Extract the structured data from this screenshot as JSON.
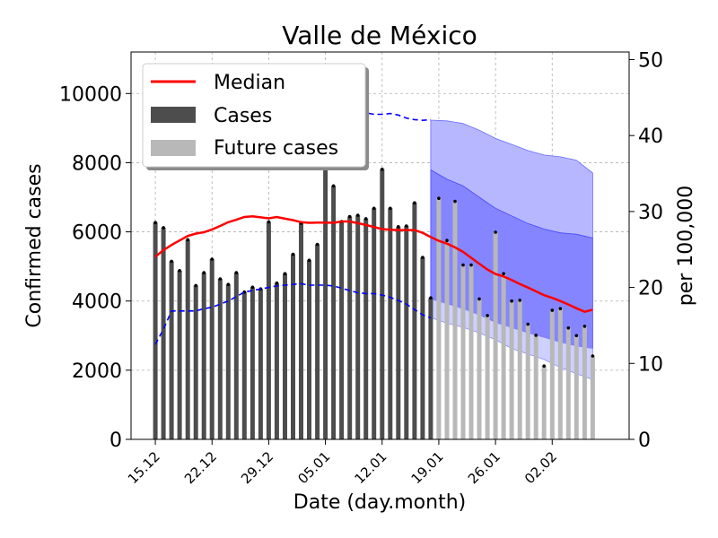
{
  "chart_data": {
    "type": "bar",
    "title": "Valle de México",
    "xlabel": "Date (day.month)",
    "ylabel": "Confirmed cases",
    "y2label": "per 100,000",
    "ylim": [
      0,
      11200
    ],
    "y2lim": [
      0,
      51
    ],
    "yticks": [
      0,
      2000,
      4000,
      6000,
      8000,
      10000
    ],
    "y2ticks": [
      0,
      10,
      20,
      30,
      40,
      50
    ],
    "xticks": [
      {
        "day": 0,
        "label": "15.12"
      },
      {
        "day": 7,
        "label": "22.12"
      },
      {
        "day": 14,
        "label": "29.12"
      },
      {
        "day": 21,
        "label": "05.01"
      },
      {
        "day": 28,
        "label": "12.01"
      },
      {
        "day": 35,
        "label": "19.01"
      },
      {
        "day": 42,
        "label": "26.01"
      },
      {
        "day": 49,
        "label": "02.02"
      }
    ],
    "xlim": [
      -3,
      58.5
    ],
    "grid": true,
    "legend_position": "top-left",
    "legend": [
      {
        "key": "median",
        "label": "Median"
      },
      {
        "key": "cases",
        "label": "Cases"
      },
      {
        "key": "future",
        "label": "Future cases"
      }
    ],
    "colors": {
      "cases": "#4d4d4d",
      "future": "#b8b8b8",
      "median": "#ff0000",
      "mean_incidence": "#0000ff",
      "band_outer": "#b7b7ff",
      "band_inner": "#8585ff",
      "band_low": "#ced0ff",
      "grid": "#b0b0b0"
    },
    "past_cases": {
      "start_day": 0,
      "values": [
        6270,
        6120,
        5150,
        4880,
        5770,
        4450,
        4820,
        5210,
        4640,
        4480,
        4820,
        4260,
        4400,
        4350,
        6290,
        4520,
        4790,
        5350,
        6250,
        5180,
        5640,
        7950,
        7330,
        6300,
        6440,
        6480,
        6380,
        6680,
        7810,
        6680,
        6150,
        6170,
        6840,
        5260,
        4090
      ]
    },
    "future_cases": {
      "start_day": 35,
      "values": [
        6970,
        5750,
        6880,
        5040,
        5040,
        4060,
        3580,
        5990,
        4790,
        4000,
        4020,
        3330,
        3010,
        2120,
        3730,
        3780,
        3220,
        3000,
        3270,
        2410
      ]
    },
    "median": {
      "days": [
        0,
        1,
        2,
        3,
        4,
        5,
        6,
        7,
        8,
        9,
        10,
        11,
        12,
        13,
        14,
        15,
        16,
        17,
        18,
        19,
        20,
        21,
        22,
        23,
        24,
        25,
        26,
        27,
        28,
        29,
        30,
        31,
        32,
        33,
        34,
        35,
        36,
        37,
        38,
        39,
        40,
        41,
        42,
        43,
        44,
        45,
        46,
        47,
        48,
        49,
        50,
        51,
        52,
        53,
        54
      ],
      "values": [
        5280,
        5470,
        5620,
        5750,
        5880,
        5950,
        5990,
        6070,
        6170,
        6280,
        6350,
        6430,
        6450,
        6420,
        6390,
        6430,
        6380,
        6340,
        6280,
        6260,
        6270,
        6270,
        6260,
        6300,
        6300,
        6250,
        6200,
        6140,
        6080,
        6060,
        6050,
        6050,
        6050,
        5970,
        5850,
        5740,
        5660,
        5550,
        5420,
        5250,
        5080,
        4910,
        4780,
        4710,
        4610,
        4490,
        4390,
        4280,
        4170,
        4090,
        4000,
        3900,
        3790,
        3690,
        3750
      ]
    },
    "mean_incidence_per_100k": {
      "days": [
        0,
        1,
        2,
        3,
        4,
        5,
        6,
        7,
        8,
        9,
        10,
        11,
        12,
        13,
        14,
        15,
        16,
        17,
        18,
        19,
        20,
        21,
        22,
        23,
        24,
        25,
        26,
        27,
        28,
        29,
        30,
        31,
        32,
        33,
        34
      ],
      "values": [
        12.5,
        14.5,
        16.9,
        16.9,
        16.9,
        16.9,
        17.2,
        17.4,
        17.8,
        18.2,
        18.8,
        19.4,
        19.6,
        19.8,
        20.0,
        20.2,
        20.3,
        20.4,
        20.5,
        20.3,
        20.3,
        20.3,
        20.2,
        19.9,
        19.6,
        19.3,
        19.2,
        19.2,
        19.0,
        18.7,
        18.3,
        17.8,
        17.1,
        16.4,
        16.0
      ]
    },
    "mean_incidence_future_per_100k": {
      "days": [
        21,
        22,
        23,
        24,
        25,
        26,
        27,
        28,
        29,
        30,
        31,
        32,
        33,
        34
      ],
      "values": [
        44.0,
        43.4,
        43.3,
        43.4,
        43.3,
        43.0,
        42.8,
        42.8,
        42.9,
        42.7,
        42.3,
        42.1,
        42.0,
        42.1
      ]
    },
    "forecast_bands": {
      "days": [
        34,
        36,
        38,
        40,
        42,
        44,
        46,
        48,
        50,
        52,
        54
      ],
      "outer_upper": [
        9230,
        9210,
        9130,
        8940,
        8700,
        8530,
        8350,
        8220,
        8170,
        8070,
        7700
      ],
      "inner_upper": [
        7790,
        7520,
        7330,
        7000,
        6680,
        6460,
        6240,
        6080,
        5970,
        5930,
        5820
      ],
      "inner_lower": [
        4060,
        3920,
        3780,
        3600,
        3380,
        3230,
        3080,
        2950,
        2810,
        2700,
        2630
      ],
      "outer_lower": [
        3520,
        3360,
        3240,
        3080,
        2880,
        2630,
        2470,
        2310,
        2080,
        1900,
        1730
      ]
    }
  }
}
